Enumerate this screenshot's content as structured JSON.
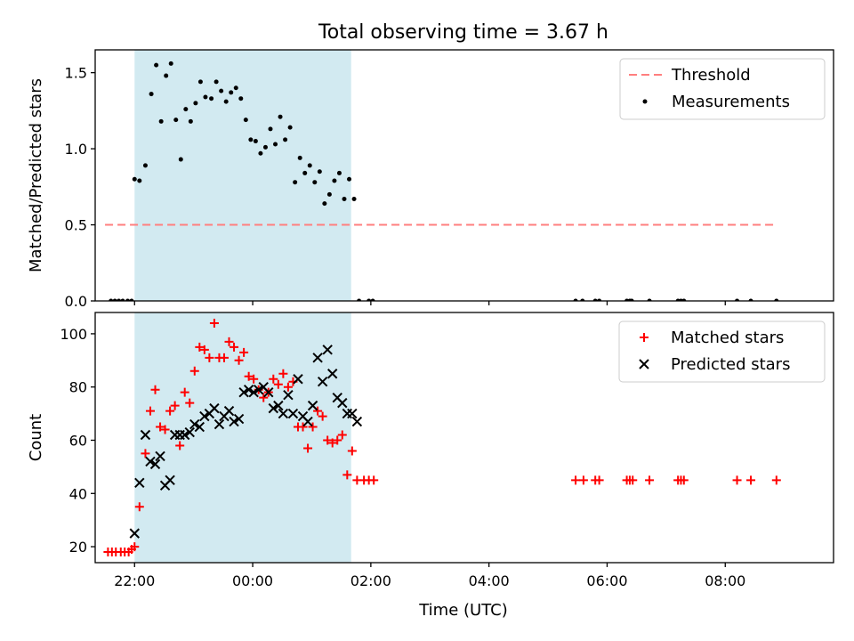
{
  "chart_data": [
    {
      "type": "scatter",
      "title": "Total observing time = 3.67 h",
      "ylabel": "Matched/Predicted stars",
      "xlabel": "",
      "xlim": [
        "21:20",
        "09:50"
      ],
      "ylim": [
        0,
        1.65
      ],
      "yticks": [
        "0.0",
        "0.5",
        "1.0",
        "1.5"
      ],
      "xticks": [
        "22:00",
        "00:00",
        "02:00",
        "04:00",
        "06:00",
        "08:00"
      ],
      "shaded_interval": [
        "22:00",
        "01:40"
      ],
      "shade_color": "#add8e6",
      "legend": {
        "placement": "top-right",
        "entries": [
          "Threshold",
          "Measurements"
        ]
      },
      "threshold": {
        "name": "Threshold",
        "value": 0.5,
        "x_range": [
          "21:30",
          "08:50"
        ],
        "color": "#ff7f7f"
      },
      "series": [
        {
          "name": "Measurements",
          "color": "#000000",
          "points": [
            [
              "21:36",
              0
            ],
            [
              "21:40",
              0
            ],
            [
              "21:44",
              0
            ],
            [
              "21:48",
              0
            ],
            [
              "21:53",
              0
            ],
            [
              "21:57",
              0
            ],
            [
              "22:00",
              0.8
            ],
            [
              "22:05",
              0.79
            ],
            [
              "22:11",
              0.89
            ],
            [
              "22:17",
              1.36
            ],
            [
              "22:22",
              1.55
            ],
            [
              "22:27",
              1.18
            ],
            [
              "22:32",
              1.48
            ],
            [
              "22:37",
              1.56
            ],
            [
              "22:42",
              1.19
            ],
            [
              "22:47",
              0.93
            ],
            [
              "22:52",
              1.26
            ],
            [
              "22:57",
              1.18
            ],
            [
              "23:02",
              1.3
            ],
            [
              "23:07",
              1.44
            ],
            [
              "23:12",
              1.34
            ],
            [
              "23:18",
              1.33
            ],
            [
              "23:23",
              1.44
            ],
            [
              "23:28",
              1.38
            ],
            [
              "23:33",
              1.31
            ],
            [
              "23:38",
              1.37
            ],
            [
              "23:43",
              1.4
            ],
            [
              "23:48",
              1.33
            ],
            [
              "23:53",
              1.19
            ],
            [
              "23:58",
              1.06
            ],
            [
              "00:03",
              1.05
            ],
            [
              "00:08",
              0.97
            ],
            [
              "00:13",
              1.01
            ],
            [
              "00:18",
              1.13
            ],
            [
              "00:23",
              1.03
            ],
            [
              "00:28",
              1.21
            ],
            [
              "00:33",
              1.06
            ],
            [
              "00:38",
              1.14
            ],
            [
              "00:43",
              0.78
            ],
            [
              "00:48",
              0.94
            ],
            [
              "00:53",
              0.84
            ],
            [
              "00:58",
              0.89
            ],
            [
              "01:03",
              0.78
            ],
            [
              "01:08",
              0.85
            ],
            [
              "01:13",
              0.64
            ],
            [
              "01:18",
              0.7
            ],
            [
              "01:23",
              0.79
            ],
            [
              "01:28",
              0.84
            ],
            [
              "01:33",
              0.67
            ],
            [
              "01:38",
              0.8
            ],
            [
              "01:43",
              0.67
            ],
            [
              "01:48",
              0
            ],
            [
              "01:58",
              0
            ],
            [
              "02:02",
              0
            ],
            [
              "05:28",
              0
            ],
            [
              "05:35",
              0
            ],
            [
              "05:48",
              0
            ],
            [
              "05:52",
              0
            ],
            [
              "06:20",
              0
            ],
            [
              "06:23",
              0
            ],
            [
              "06:25",
              0
            ],
            [
              "06:43",
              0
            ],
            [
              "07:12",
              0
            ],
            [
              "07:15",
              0
            ],
            [
              "07:18",
              0
            ],
            [
              "08:12",
              0
            ],
            [
              "08:26",
              0
            ],
            [
              "08:52",
              0
            ]
          ]
        }
      ]
    },
    {
      "type": "scatter",
      "title": "",
      "xlabel": "Time (UTC)",
      "ylabel": "Count",
      "xlim": [
        "21:20",
        "09:50"
      ],
      "ylim": [
        14,
        108
      ],
      "yticks": [
        "20",
        "40",
        "60",
        "80",
        "100"
      ],
      "xticks": [
        "22:00",
        "00:00",
        "02:00",
        "04:00",
        "06:00",
        "08:00"
      ],
      "shaded_interval": [
        "22:00",
        "01:40"
      ],
      "shade_color": "#add8e6",
      "legend": {
        "placement": "top-right",
        "entries": [
          "Matched stars",
          "Predicted stars"
        ]
      },
      "series": [
        {
          "name": "Matched stars",
          "marker": "+",
          "color": "#ff0000",
          "points": [
            [
              "21:33",
              18
            ],
            [
              "21:37",
              18
            ],
            [
              "21:41",
              18
            ],
            [
              "21:46",
              18
            ],
            [
              "21:50",
              18
            ],
            [
              "21:54",
              18
            ],
            [
              "21:57",
              19
            ],
            [
              "22:00",
              20
            ],
            [
              "22:05",
              35
            ],
            [
              "22:11",
              55
            ],
            [
              "22:16",
              71
            ],
            [
              "22:21",
              79
            ],
            [
              "22:26",
              65
            ],
            [
              "22:31",
              64
            ],
            [
              "22:36",
              71
            ],
            [
              "22:41",
              73
            ],
            [
              "22:46",
              58
            ],
            [
              "22:51",
              78
            ],
            [
              "22:56",
              74
            ],
            [
              "23:01",
              86
            ],
            [
              "23:06",
              95
            ],
            [
              "23:11",
              94
            ],
            [
              "23:16",
              91
            ],
            [
              "23:21",
              104
            ],
            [
              "23:26",
              91
            ],
            [
              "23:31",
              91
            ],
            [
              "23:36",
              97
            ],
            [
              "23:41",
              95
            ],
            [
              "23:46",
              90
            ],
            [
              "23:51",
              93
            ],
            [
              "23:56",
              84
            ],
            [
              "00:01",
              83
            ],
            [
              "00:06",
              79
            ],
            [
              "00:11",
              76
            ],
            [
              "00:16",
              78
            ],
            [
              "00:21",
              83
            ],
            [
              "00:26",
              81
            ],
            [
              "00:31",
              85
            ],
            [
              "00:36",
              80
            ],
            [
              "00:41",
              82
            ],
            [
              "00:46",
              65
            ],
            [
              "00:51",
              65
            ],
            [
              "00:56",
              57
            ],
            [
              "01:01",
              65
            ],
            [
              "01:06",
              71
            ],
            [
              "01:11",
              69
            ],
            [
              "01:16",
              60
            ],
            [
              "01:21",
              59
            ],
            [
              "01:26",
              60
            ],
            [
              "01:31",
              62
            ],
            [
              "01:36",
              47
            ],
            [
              "01:41",
              56
            ],
            [
              "01:46",
              45
            ],
            [
              "01:53",
              45
            ],
            [
              "01:58",
              45
            ],
            [
              "02:03",
              45
            ],
            [
              "05:28",
              45
            ],
            [
              "05:36",
              45
            ],
            [
              "05:48",
              45
            ],
            [
              "05:52",
              45
            ],
            [
              "06:20",
              45
            ],
            [
              "06:23",
              45
            ],
            [
              "06:26",
              45
            ],
            [
              "06:43",
              45
            ],
            [
              "07:12",
              45
            ],
            [
              "07:15",
              45
            ],
            [
              "07:18",
              45
            ],
            [
              "08:12",
              45
            ],
            [
              "08:26",
              45
            ],
            [
              "08:52",
              45
            ]
          ]
        },
        {
          "name": "Predicted stars",
          "marker": "x",
          "color": "#000000",
          "points": [
            [
              "22:00",
              25
            ],
            [
              "22:05",
              44
            ],
            [
              "22:11",
              62
            ],
            [
              "22:16",
              52
            ],
            [
              "22:21",
              51
            ],
            [
              "22:26",
              54
            ],
            [
              "22:31",
              43
            ],
            [
              "22:36",
              45
            ],
            [
              "22:41",
              62
            ],
            [
              "22:46",
              62
            ],
            [
              "22:51",
              62
            ],
            [
              "22:56",
              63
            ],
            [
              "23:01",
              66
            ],
            [
              "23:06",
              65
            ],
            [
              "23:11",
              69
            ],
            [
              "23:16",
              70
            ],
            [
              "23:21",
              72
            ],
            [
              "23:26",
              66
            ],
            [
              "23:31",
              69
            ],
            [
              "23:36",
              71
            ],
            [
              "23:41",
              67
            ],
            [
              "23:46",
              68
            ],
            [
              "23:51",
              78
            ],
            [
              "23:56",
              79
            ],
            [
              "00:01",
              78
            ],
            [
              "00:06",
              79
            ],
            [
              "00:11",
              80
            ],
            [
              "00:16",
              78
            ],
            [
              "00:21",
              72
            ],
            [
              "00:26",
              73
            ],
            [
              "00:31",
              70
            ],
            [
              "00:36",
              77
            ],
            [
              "00:41",
              70
            ],
            [
              "00:46",
              83
            ],
            [
              "00:51",
              69
            ],
            [
              "00:56",
              67
            ],
            [
              "01:01",
              73
            ],
            [
              "01:06",
              91
            ],
            [
              "01:11",
              82
            ],
            [
              "01:16",
              94
            ],
            [
              "01:21",
              85
            ],
            [
              "01:26",
              76
            ],
            [
              "01:31",
              74
            ],
            [
              "01:36",
              70
            ],
            [
              "01:41",
              70
            ],
            [
              "01:46",
              67
            ]
          ]
        }
      ]
    }
  ]
}
